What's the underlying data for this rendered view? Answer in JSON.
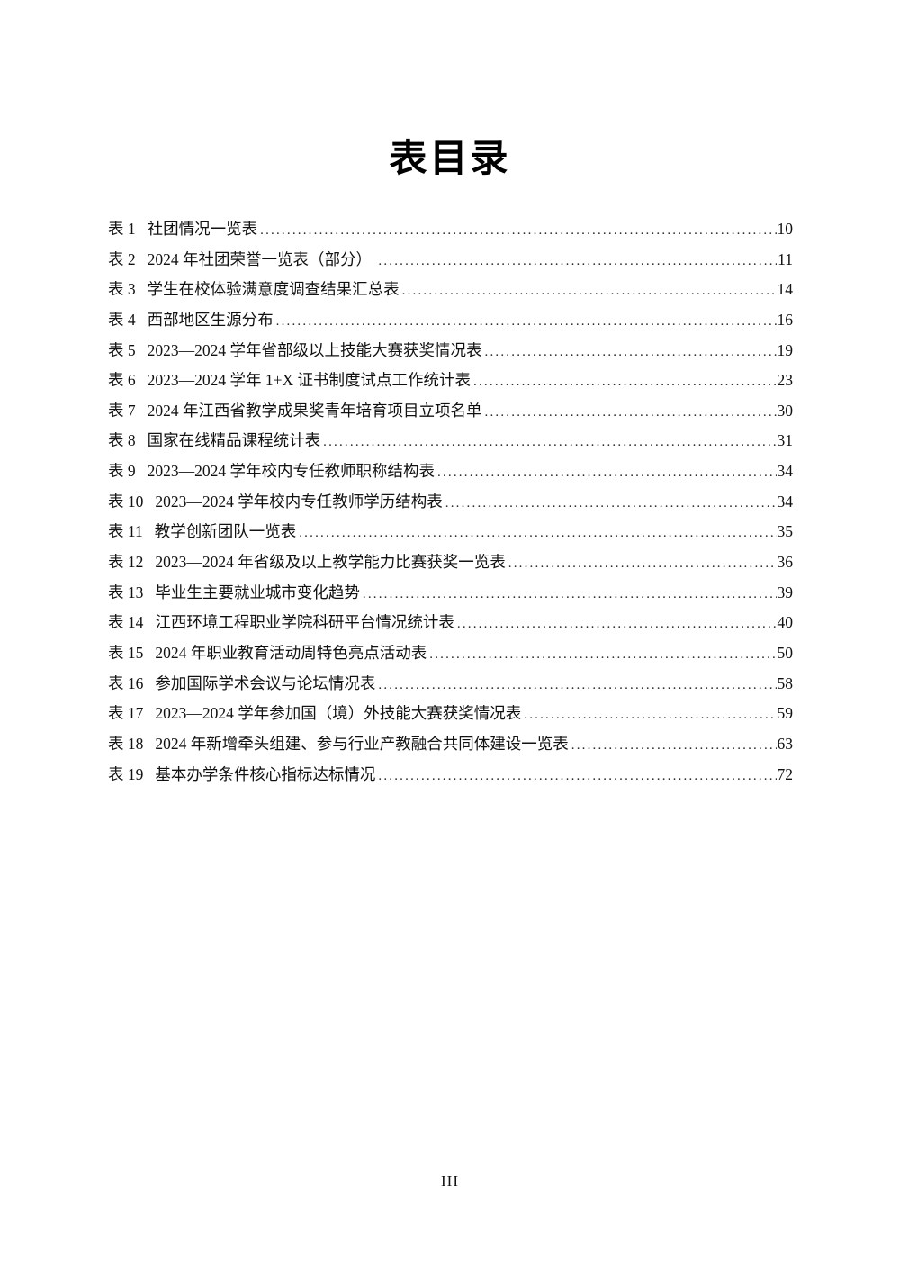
{
  "page": {
    "title": "表目录"
  },
  "toc": {
    "entries": [
      {
        "label": "表 1",
        "title": "社团情况一览表",
        "page": "10"
      },
      {
        "label": "表 2",
        "title": "2024 年社团荣誉一览表（部分） ",
        "page": "11"
      },
      {
        "label": "表 3",
        "title": "学生在校体验满意度调查结果汇总表",
        "page": "14"
      },
      {
        "label": "表 4",
        "title": "西部地区生源分布",
        "page": "16"
      },
      {
        "label": "表 5",
        "title": "2023—2024 学年省部级以上技能大赛获奖情况表",
        "page": "19"
      },
      {
        "label": "表 6",
        "title": "2023—2024 学年 1+X 证书制度试点工作统计表",
        "page": "23"
      },
      {
        "label": "表 7",
        "title": "2024 年江西省教学成果奖青年培育项目立项名单",
        "page": "30"
      },
      {
        "label": "表 8",
        "title": "国家在线精品课程统计表",
        "page": "31"
      },
      {
        "label": "表 9",
        "title": "2023—2024 学年校内专任教师职称结构表",
        "page": "34"
      },
      {
        "label": "表 10",
        "title": "2023—2024 学年校内专任教师学历结构表",
        "page": "34"
      },
      {
        "label": "表 11",
        "title": "教学创新团队一览表",
        "page": "35"
      },
      {
        "label": "表 12",
        "title": "2023—2024 年省级及以上教学能力比赛获奖一览表",
        "page": "36"
      },
      {
        "label": "表 13",
        "title": "毕业生主要就业城市变化趋势",
        "page": "39"
      },
      {
        "label": "表 14",
        "title": "江西环境工程职业学院科研平台情况统计表",
        "page": "40"
      },
      {
        "label": "表 15",
        "title": "2024 年职业教育活动周特色亮点活动表",
        "page": "50"
      },
      {
        "label": "表 16",
        "title": "参加国际学术会议与论坛情况表",
        "page": "58"
      },
      {
        "label": "表 17",
        "title": "2023—2024 学年参加国（境）外技能大赛获奖情况表",
        "page": "59"
      },
      {
        "label": "表 18",
        "title": "2024 年新增牵头组建、参与行业产教融合共同体建设一览表",
        "page": "63"
      },
      {
        "label": "表 19",
        "title": "基本办学条件核心指标达标情况",
        "page": "72"
      }
    ]
  },
  "footer": {
    "page_number": "III"
  }
}
